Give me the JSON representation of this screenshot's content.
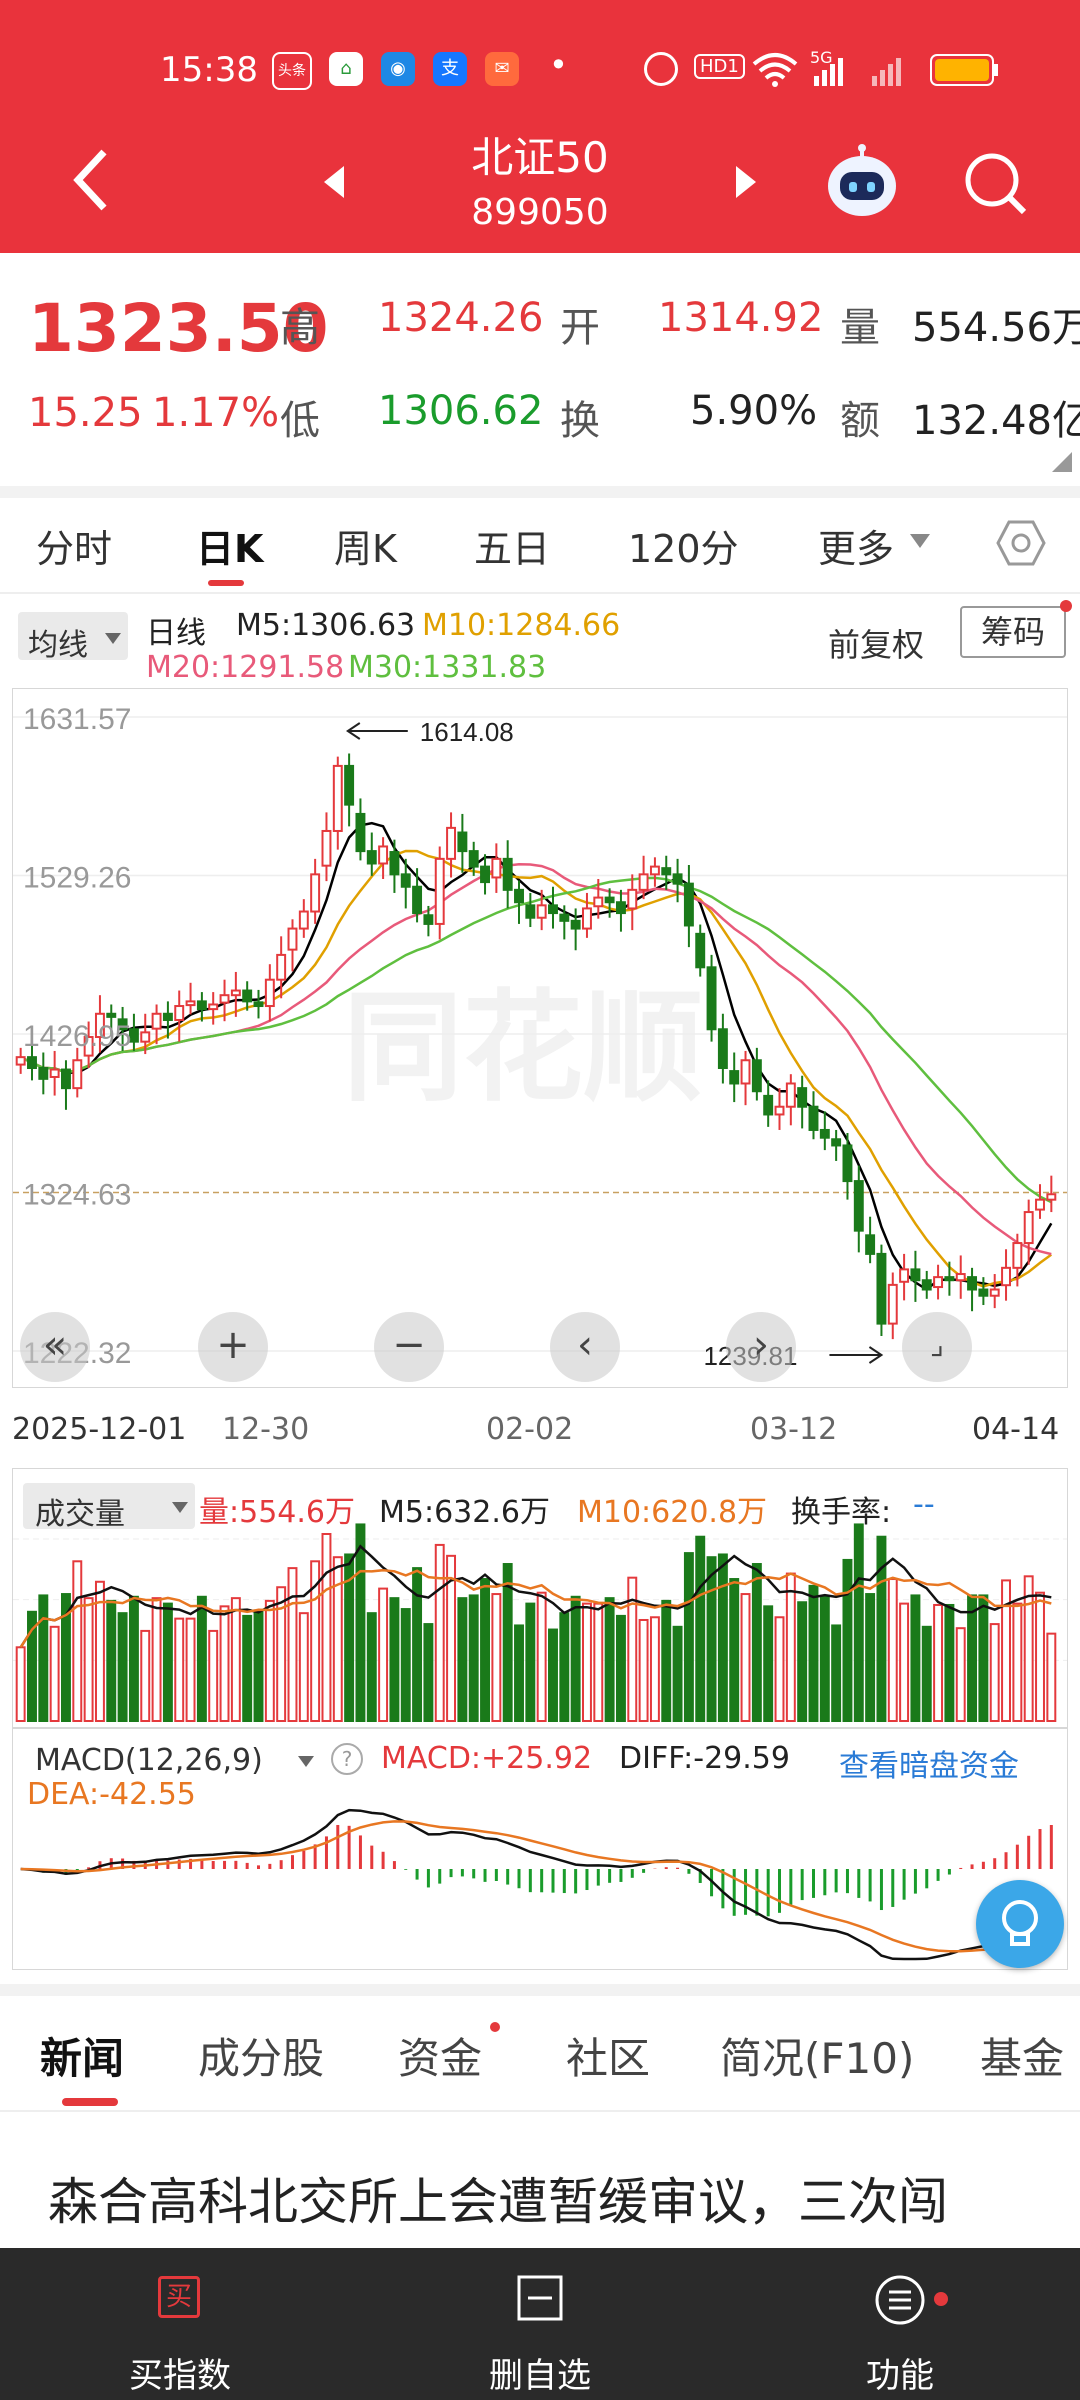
{
  "status_bar": {
    "time": "15:38",
    "apps": [
      "头条",
      "⌂",
      "◉",
      "支",
      "✉"
    ],
    "dot": "•",
    "hd_label": "HD1",
    "signal_label": "5G"
  },
  "header": {
    "title": "北证50",
    "code": "899050"
  },
  "quote": {
    "price": "1323.50",
    "change": "15.25",
    "change_pct": "1.17%",
    "high_label": "高",
    "high": "1324.26",
    "open_label": "开",
    "open": "1314.92",
    "volume_label": "量",
    "volume": "554.56万",
    "low_label": "低",
    "low": "1306.62",
    "turnover_label": "换",
    "turnover": "5.90%",
    "amount_label": "额",
    "amount": "132.48亿"
  },
  "tabs": [
    "分时",
    "日K",
    "周K",
    "五日",
    "120分",
    "更多"
  ],
  "kline": {
    "ma_selector": "均线",
    "period_label": "日线",
    "m5": "M5:1306.63",
    "m10": "M10:1284.66",
    "m20": "M20:1291.58",
    "m30": "M30:1331.83",
    "adjust_label": "前复权",
    "chips_button": "筹码",
    "y_ticks": [
      "1631.57",
      "1529.26",
      "1426.95",
      "1324.63",
      "1222.32"
    ],
    "max_label": "1614.08",
    "min_label": "1239.81",
    "dates": [
      "2025-12-01",
      "12-30",
      "02-02",
      "03-12",
      "04-14"
    ],
    "watermark": "同花顺"
  },
  "volume": {
    "selector": "成交量",
    "vol": "量:554.6万",
    "m5": "M5:632.6万",
    "m10": "M10:620.8万",
    "turnover_rate": "换手率:",
    "turnover_rate_value": "--"
  },
  "macd": {
    "selector": "MACD(12,26,9)",
    "help_icon": "?",
    "macd": "MACD:+25.92",
    "diff": "DIFF:-29.59",
    "dea": "DEA:-42.55",
    "link": "查看暗盘资金"
  },
  "news_tabs": [
    "新闻",
    "成分股",
    "资金",
    "社区",
    "简况(F10)",
    "基金"
  ],
  "news_headline": "森合高科北交所上会遭暂缓审议，三次闯",
  "bottom_bar": {
    "buy": "买指数",
    "buy_icon": "买",
    "remove": "删自选",
    "function": "功能"
  },
  "colors": {
    "header_red": "#e9333c",
    "up_red": "#e4393c",
    "down_green": "#1a9c2c",
    "ma5": "#000000",
    "ma10": "#e0a000",
    "ma20": "#e85a7a",
    "ma30": "#5fbf3f",
    "link_blue": "#2a7bd6"
  },
  "chart_data": {
    "type": "candlestick",
    "x_labels": [
      "2025-12-01",
      "12-30",
      "02-02",
      "03-12",
      "04-14"
    ],
    "ylim": [
      1222.32,
      1631.57
    ],
    "y_ticks": [
      1631.57,
      1529.26,
      1426.95,
      1324.63,
      1222.32
    ],
    "annotations": [
      {
        "text": "1614.08"
      },
      {
        "text": "1239.81"
      }
    ],
    "series": [
      {
        "name": "M5",
        "last": 1306.63
      },
      {
        "name": "M10",
        "last": 1284.66
      },
      {
        "name": "M20",
        "last": 1291.58
      },
      {
        "name": "M30",
        "last": 1331.83
      }
    ],
    "close": [
      1412,
      1405,
      1398,
      1404,
      1392,
      1410,
      1425,
      1440,
      1438,
      1430,
      1422,
      1428,
      1440,
      1436,
      1445,
      1448,
      1443,
      1446,
      1452,
      1455,
      1448,
      1445,
      1462,
      1478,
      1495,
      1506,
      1530,
      1558,
      1600,
      1575,
      1545,
      1537,
      1548,
      1530,
      1522,
      1505,
      1498,
      1540,
      1560,
      1545,
      1535,
      1525,
      1540,
      1520,
      1512,
      1502,
      1510,
      1505,
      1500,
      1495,
      1508,
      1515,
      1512,
      1505,
      1520,
      1530,
      1535,
      1530,
      1524,
      1497,
      1470,
      1430,
      1405,
      1395,
      1410,
      1390,
      1375,
      1380,
      1395,
      1380,
      1365,
      1360,
      1355,
      1332,
      1300,
      1285,
      1240,
      1265,
      1275,
      1268,
      1262,
      1270,
      1268,
      1272,
      1262,
      1258,
      1262,
      1276,
      1292,
      1312,
      1320,
      1323.5
    ]
  }
}
